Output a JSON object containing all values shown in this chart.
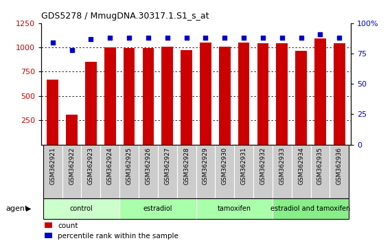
{
  "title": "GDS5278 / MmugDNA.30317.1.S1_s_at",
  "categories": [
    "GSM362921",
    "GSM362922",
    "GSM362923",
    "GSM362924",
    "GSM362925",
    "GSM362926",
    "GSM362927",
    "GSM362928",
    "GSM362929",
    "GSM362930",
    "GSM362931",
    "GSM362932",
    "GSM362933",
    "GSM362934",
    "GSM362935",
    "GSM362936"
  ],
  "counts": [
    670,
    310,
    850,
    1000,
    995,
    995,
    1010,
    975,
    1050,
    1005,
    1050,
    1040,
    1040,
    965,
    1095,
    1040
  ],
  "percentile_ranks": [
    84,
    78,
    87,
    88,
    88,
    88,
    88,
    88,
    88,
    88,
    88,
    88,
    88,
    88,
    91,
    88
  ],
  "bar_color": "#cc0000",
  "dot_color": "#0000cc",
  "ylim_left": [
    0,
    1250
  ],
  "ylim_right": [
    0,
    100
  ],
  "yticks_left": [
    250,
    500,
    750,
    1000,
    1250
  ],
  "yticks_right": [
    0,
    25,
    50,
    75,
    100
  ],
  "groups": [
    {
      "label": "control",
      "start": 0,
      "end": 4
    },
    {
      "label": "estradiol",
      "start": 4,
      "end": 8
    },
    {
      "label": "tamoxifen",
      "start": 8,
      "end": 12
    },
    {
      "label": "estradiol and tamoxifen",
      "start": 12,
      "end": 16
    }
  ],
  "group_colors": [
    "#ccffcc",
    "#aaffaa",
    "#aaffaa",
    "#88ee88"
  ],
  "agent_label": "agent",
  "legend_count_label": "count",
  "legend_percentile_label": "percentile rank within the sample",
  "background_color": "#ffffff",
  "tick_label_color_left": "#cc0000",
  "tick_label_color_right": "#0000cc",
  "bar_width": 0.6,
  "cell_bg_color": "#cccccc",
  "cell_border_color": "#ffffff"
}
